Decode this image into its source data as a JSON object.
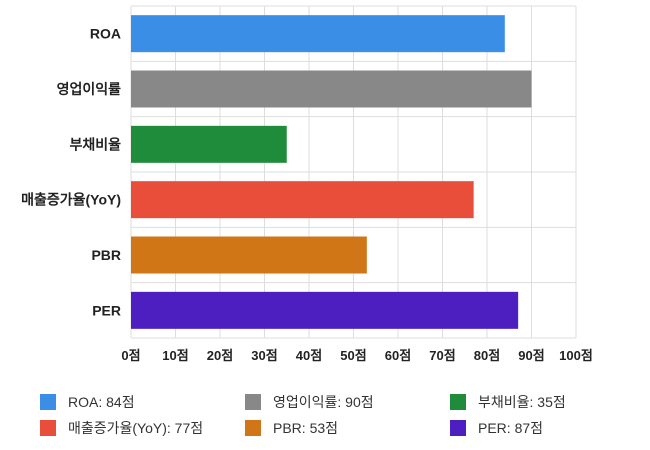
{
  "chart_data": {
    "type": "bar",
    "orientation": "horizontal",
    "categories": [
      "ROA",
      "영업이익률",
      "부채비율",
      "매출증가율(YoY)",
      "PBR",
      "PER"
    ],
    "values": [
      84,
      90,
      35,
      77,
      53,
      87
    ],
    "colors": [
      "#3a8ee6",
      "#888888",
      "#1e8c3a",
      "#e84e3a",
      "#d07617",
      "#4e1fc0"
    ],
    "xlim": [
      0,
      100
    ],
    "ticks": [
      0,
      10,
      20,
      30,
      40,
      50,
      60,
      70,
      80,
      90,
      100
    ],
    "tick_labels": [
      "0점",
      "10점",
      "20점",
      "30점",
      "40점",
      "50점",
      "60점",
      "70점",
      "80점",
      "90점",
      "100점"
    ],
    "grid": true,
    "legend": {
      "position": "bottom",
      "labels": [
        "ROA: 84점",
        "영업이익률: 90점",
        "부채비율: 35점",
        "매출증가율(YoY): 77점",
        "PBR: 53점",
        "PER: 87점"
      ]
    }
  }
}
